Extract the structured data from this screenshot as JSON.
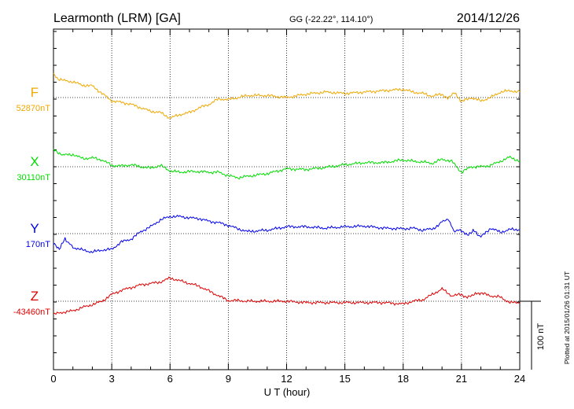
{
  "header": {
    "station": "Learmonth (LRM)  [GA]",
    "coords": "GG (-22.22°, 114.10°)",
    "date": "2014/12/26"
  },
  "footer": {
    "plotted": "Plotted at 2015/01/26 01:31  UT"
  },
  "chart_data": {
    "type": "line",
    "title": "Learmonth (LRM)  [GA]",
    "xlabel": "U T (hour)",
    "xlim": [
      0,
      24
    ],
    "xticks": [
      0,
      3,
      6,
      9,
      12,
      15,
      18,
      21,
      24
    ],
    "grid": true,
    "scale_bar": {
      "label": "100 nT",
      "value_nT": 100
    },
    "series": [
      {
        "name": "F",
        "baseline_label": "52870nT",
        "baseline_nT": 52870,
        "color": "#f0a800",
        "x": [
          0,
          0.25,
          0.5,
          1,
          1.5,
          2,
          2.5,
          3,
          3.5,
          4,
          4.5,
          5,
          5.5,
          6,
          6.5,
          7,
          7.5,
          8,
          8.5,
          9,
          9.5,
          10,
          11,
          12,
          13,
          14,
          15,
          16,
          17,
          18,
          18.5,
          19,
          19.5,
          20,
          20.3,
          20.6,
          21,
          21.5,
          22,
          22.5,
          23,
          23.5,
          24
        ],
        "values": [
          52905,
          52897,
          52895,
          52893,
          52888,
          52887,
          52876,
          52865,
          52863,
          52860,
          52855,
          52850,
          52848,
          52840,
          52845,
          52848,
          52855,
          52860,
          52868,
          52867,
          52870,
          52873,
          52873,
          52870,
          52875,
          52878,
          52876,
          52878,
          52880,
          52882,
          52878,
          52876,
          52872,
          52875,
          52868,
          52878,
          52864,
          52870,
          52865,
          52870,
          52878,
          52880,
          52878
        ]
      },
      {
        "name": "X",
        "baseline_label": "30110nT",
        "baseline_nT": 30110,
        "color": "#00dd00",
        "x": [
          0,
          0.5,
          1,
          1.5,
          2,
          2.5,
          3,
          3.5,
          4,
          4.5,
          5,
          5.5,
          6,
          6.5,
          7,
          7.5,
          8,
          8.5,
          9,
          9.5,
          10,
          11,
          12,
          13,
          14,
          15,
          16,
          17,
          18,
          18.5,
          19,
          19.5,
          20,
          20.5,
          21,
          21.5,
          22,
          22.5,
          23,
          23.5,
          24
        ],
        "values": [
          30135,
          30127,
          30128,
          30122,
          30123,
          30120,
          30112,
          30111,
          30113,
          30110,
          30108,
          30112,
          30104,
          30102,
          30103,
          30103,
          30102,
          30102,
          30097,
          30094,
          30096,
          30100,
          30107,
          30106,
          30109,
          30113,
          30116,
          30116,
          30120,
          30118,
          30117,
          30115,
          30121,
          30118,
          30102,
          30110,
          30110,
          30112,
          30118,
          30124,
          30118
        ]
      },
      {
        "name": "Y",
        "baseline_label": "170nT",
        "baseline_nT": 170,
        "color": "#0000ee",
        "x": [
          0,
          0.3,
          0.6,
          1,
          1.5,
          2,
          2.5,
          3,
          3.5,
          4,
          4.5,
          5,
          5.5,
          6,
          6.5,
          7,
          7.5,
          8,
          8.5,
          9,
          9.5,
          10,
          11,
          12,
          13,
          14,
          15,
          16,
          17,
          18,
          18.5,
          19,
          19.5,
          19.8,
          20,
          20.3,
          20.6,
          21,
          21.3,
          21.6,
          22,
          22.5,
          23,
          23.5,
          24
        ],
        "values": [
          155,
          148,
          162,
          150,
          146,
          143,
          146,
          147,
          158,
          162,
          173,
          180,
          190,
          195,
          195,
          193,
          192,
          188,
          186,
          182,
          177,
          173,
          175,
          180,
          180,
          178,
          180,
          181,
          178,
          177,
          178,
          175,
          177,
          181,
          187,
          192,
          174,
          175,
          167,
          175,
          165,
          178,
          172,
          176,
          176
        ]
      },
      {
        "name": "Z",
        "baseline_label": "-43460nT",
        "baseline_nT": -43460,
        "color": "#e00000",
        "x": [
          0,
          0.5,
          1,
          1.5,
          2,
          2.5,
          3,
          3.5,
          4,
          4.5,
          5,
          5.5,
          6,
          6.5,
          7,
          7.5,
          8,
          8.5,
          9,
          9.5,
          10,
          11,
          12,
          13,
          14,
          15,
          16,
          17,
          18,
          18.5,
          19,
          19.5,
          20,
          20.5,
          21,
          21.3,
          21.6,
          22,
          22.5,
          23,
          23.5,
          24
        ],
        "values": [
          -43479,
          -43476,
          -43474,
          -43469,
          -43465,
          -43460,
          -43450,
          -43444,
          -43440,
          -43436,
          -43434,
          -43432,
          -43426,
          -43430,
          -43434,
          -43438,
          -43445,
          -43452,
          -43459,
          -43459,
          -43460,
          -43460,
          -43460,
          -43462,
          -43462,
          -43462,
          -43462,
          -43462,
          -43464,
          -43460,
          -43458,
          -43450,
          -43442,
          -43452,
          -43450,
          -43455,
          -43450,
          -43448,
          -43452,
          -43454,
          -43462,
          -43462
        ]
      }
    ]
  }
}
